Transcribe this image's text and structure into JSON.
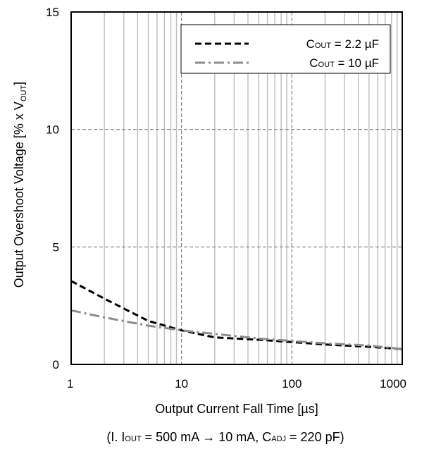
{
  "chart_data": {
    "type": "line",
    "xlabel": "Output Current Fall Time [µs]",
    "ylabel_parts": {
      "pre": "Output Overshoot Voltage [% x V",
      "sub": "OUT",
      "post": "]"
    },
    "note": {
      "p1": "(I. I",
      "s1": "OUT",
      "p2": " = 500 mA → 10 mA,  C",
      "s2": "ADJ",
      "p3": " = 220 pF)"
    },
    "x_scale": "log",
    "xlim": [
      1,
      1000
    ],
    "ylim": [
      0,
      15
    ],
    "x_ticks": [
      "1",
      "10",
      "100",
      "1000"
    ],
    "y_ticks": [
      "0",
      "5",
      "10",
      "15"
    ],
    "grid": true,
    "legend_position": "top-right",
    "series": [
      {
        "legend": {
          "pre": "C",
          "sub": "OUT",
          "post": "  =  2.2  µF"
        },
        "color": "#000000",
        "dash": "dash",
        "x": [
          1,
          2,
          5,
          10,
          20,
          50,
          100,
          200,
          500,
          1000
        ],
        "y": [
          3.55,
          2.8,
          1.85,
          1.45,
          1.15,
          1.05,
          0.95,
          0.85,
          0.75,
          0.65
        ]
      },
      {
        "legend": {
          "pre": "C",
          "sub": "OUT",
          "post": " = 10 µF"
        },
        "color": "#8c8c8c",
        "dash": "dashdot",
        "x": [
          1,
          2,
          5,
          10,
          20,
          50,
          100,
          200,
          500,
          1000
        ],
        "y": [
          2.3,
          2.0,
          1.65,
          1.45,
          1.3,
          1.1,
          1.0,
          0.9,
          0.8,
          0.65
        ]
      }
    ]
  }
}
